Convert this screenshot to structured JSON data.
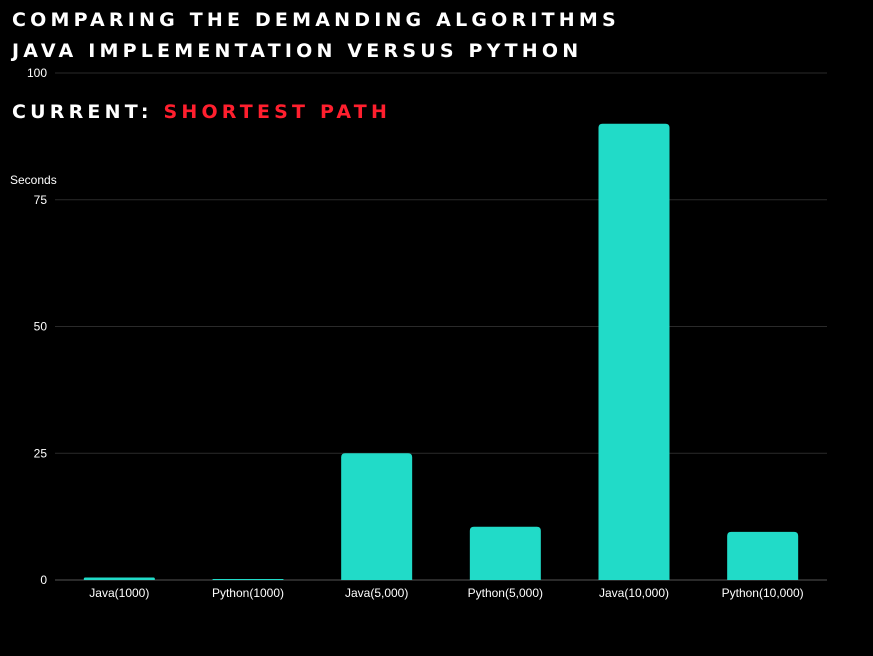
{
  "chart_data": {
    "type": "bar",
    "title_lines": [
      "COMPARING THE DEMANDING ALGORITHMS",
      "JAVA IMPLEMENTATION VERSUS PYTHON"
    ],
    "current_label": "CURRENT:",
    "current_value": "SHORTEST PATH",
    "ylabel": "Seconds",
    "ylim": [
      0,
      100
    ],
    "yticks": [
      0,
      25,
      50,
      75,
      100
    ],
    "grid": true,
    "categories": [
      "Java(1000)",
      "Python(1000)",
      "Java(5,000)",
      "Python(5,000)",
      "Java(10,000)",
      "Python(10,000)"
    ],
    "values": [
      0.5,
      0.2,
      25,
      10.5,
      90,
      9.5
    ],
    "bar_color": "#21dbc8",
    "highlight_color": "#ff1f2e"
  }
}
